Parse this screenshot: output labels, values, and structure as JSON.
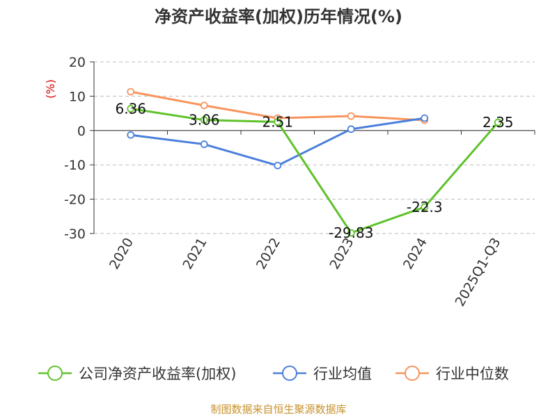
{
  "chart_data": {
    "type": "line",
    "title": "净资产收益率(加权)历年情况(%)",
    "ylabel": "(%)",
    "xlabel": "",
    "categories": [
      "2020",
      "2021",
      "2022",
      "2023",
      "2024",
      "2025Q1-Q3"
    ],
    "ylim": [
      -30,
      20
    ],
    "yticks": [
      20,
      10,
      0,
      -10,
      -20,
      -30
    ],
    "grid": true,
    "legend_position": "bottom",
    "series": [
      {
        "name": "公司净资产收益率(加权)",
        "color": "#5ec22a",
        "values": [
          6.36,
          3.06,
          2.51,
          -29.83,
          -22.3,
          2.35
        ],
        "labels": [
          "6.36",
          "3.06",
          "2.51",
          "-29.83",
          "-22.3",
          "2.35"
        ]
      },
      {
        "name": "行业均值",
        "color": "#4a7fdc",
        "values": [
          -1.3,
          -4.0,
          -10.2,
          0.4,
          3.6,
          null
        ]
      },
      {
        "name": "行业中位数",
        "color": "#f7945c",
        "values": [
          11.3,
          7.3,
          3.6,
          4.2,
          3.0,
          null
        ]
      }
    ]
  },
  "footer": {
    "source": "制图数据来自恒生聚源数据库"
  }
}
